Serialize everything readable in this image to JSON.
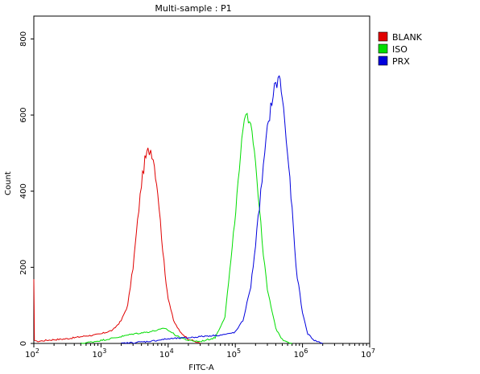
{
  "chart_data": {
    "type": "line",
    "title": "Multi-sample : P1",
    "xlabel": "FITC-A",
    "ylabel": "Count",
    "x_scale": "log",
    "xlim": [
      100,
      10000000
    ],
    "ylim": [
      0,
      860
    ],
    "x_ticks": [
      {
        "value": 100,
        "base": "10",
        "exp": "2"
      },
      {
        "value": 1000,
        "base": "10",
        "exp": "3"
      },
      {
        "value": 10000,
        "base": "10",
        "exp": "4"
      },
      {
        "value": 100000,
        "base": "10",
        "exp": "5"
      },
      {
        "value": 1000000,
        "base": "10",
        "exp": "6"
      },
      {
        "value": 10000000,
        "base": "10",
        "exp": "7"
      }
    ],
    "y_ticks": [
      0,
      200,
      400,
      600,
      800
    ],
    "grid": false,
    "legend_position": "right-top",
    "series": [
      {
        "name": "BLANK",
        "color": "#e00000",
        "points": [
          [
            100,
            165
          ],
          [
            102,
            10
          ],
          [
            110,
            5
          ],
          [
            150,
            8
          ],
          [
            200,
            10
          ],
          [
            300,
            12
          ],
          [
            400,
            15
          ],
          [
            600,
            20
          ],
          [
            800,
            22
          ],
          [
            1000,
            25
          ],
          [
            1500,
            35
          ],
          [
            2000,
            60
          ],
          [
            2500,
            100
          ],
          [
            3000,
            200
          ],
          [
            3500,
            320
          ],
          [
            4000,
            420
          ],
          [
            4500,
            480
          ],
          [
            5000,
            505
          ],
          [
            5500,
            510
          ],
          [
            6000,
            490
          ],
          [
            7000,
            400
          ],
          [
            8000,
            280
          ],
          [
            9000,
            180
          ],
          [
            10000,
            120
          ],
          [
            12000,
            60
          ],
          [
            15000,
            30
          ],
          [
            20000,
            12
          ],
          [
            25000,
            5
          ],
          [
            30000,
            0
          ]
        ]
      },
      {
        "name": "ISO",
        "color": "#00dd00",
        "points": [
          [
            500,
            0
          ],
          [
            800,
            5
          ],
          [
            1000,
            8
          ],
          [
            2000,
            18
          ],
          [
            3000,
            25
          ],
          [
            5000,
            30
          ],
          [
            7000,
            35
          ],
          [
            9000,
            40
          ],
          [
            11000,
            30
          ],
          [
            14000,
            18
          ],
          [
            20000,
            8
          ],
          [
            30000,
            5
          ],
          [
            50000,
            15
          ],
          [
            70000,
            70
          ],
          [
            90000,
            250
          ],
          [
            110000,
            420
          ],
          [
            130000,
            560
          ],
          [
            150000,
            600
          ],
          [
            170000,
            590
          ],
          [
            200000,
            480
          ],
          [
            250000,
            270
          ],
          [
            300000,
            140
          ],
          [
            400000,
            40
          ],
          [
            500000,
            10
          ],
          [
            700000,
            0
          ]
        ]
      },
      {
        "name": "PRX",
        "color": "#0000dd",
        "points": [
          [
            2000,
            0
          ],
          [
            5000,
            5
          ],
          [
            10000,
            12
          ],
          [
            20000,
            15
          ],
          [
            40000,
            20
          ],
          [
            60000,
            22
          ],
          [
            80000,
            25
          ],
          [
            100000,
            30
          ],
          [
            130000,
            60
          ],
          [
            170000,
            150
          ],
          [
            200000,
            260
          ],
          [
            250000,
            430
          ],
          [
            300000,
            560
          ],
          [
            350000,
            640
          ],
          [
            400000,
            680
          ],
          [
            450000,
            700
          ],
          [
            500000,
            650
          ],
          [
            600000,
            500
          ],
          [
            700000,
            350
          ],
          [
            800000,
            200
          ],
          [
            1000000,
            80
          ],
          [
            1200000,
            25
          ],
          [
            1500000,
            8
          ],
          [
            2000000,
            0
          ]
        ]
      }
    ]
  }
}
